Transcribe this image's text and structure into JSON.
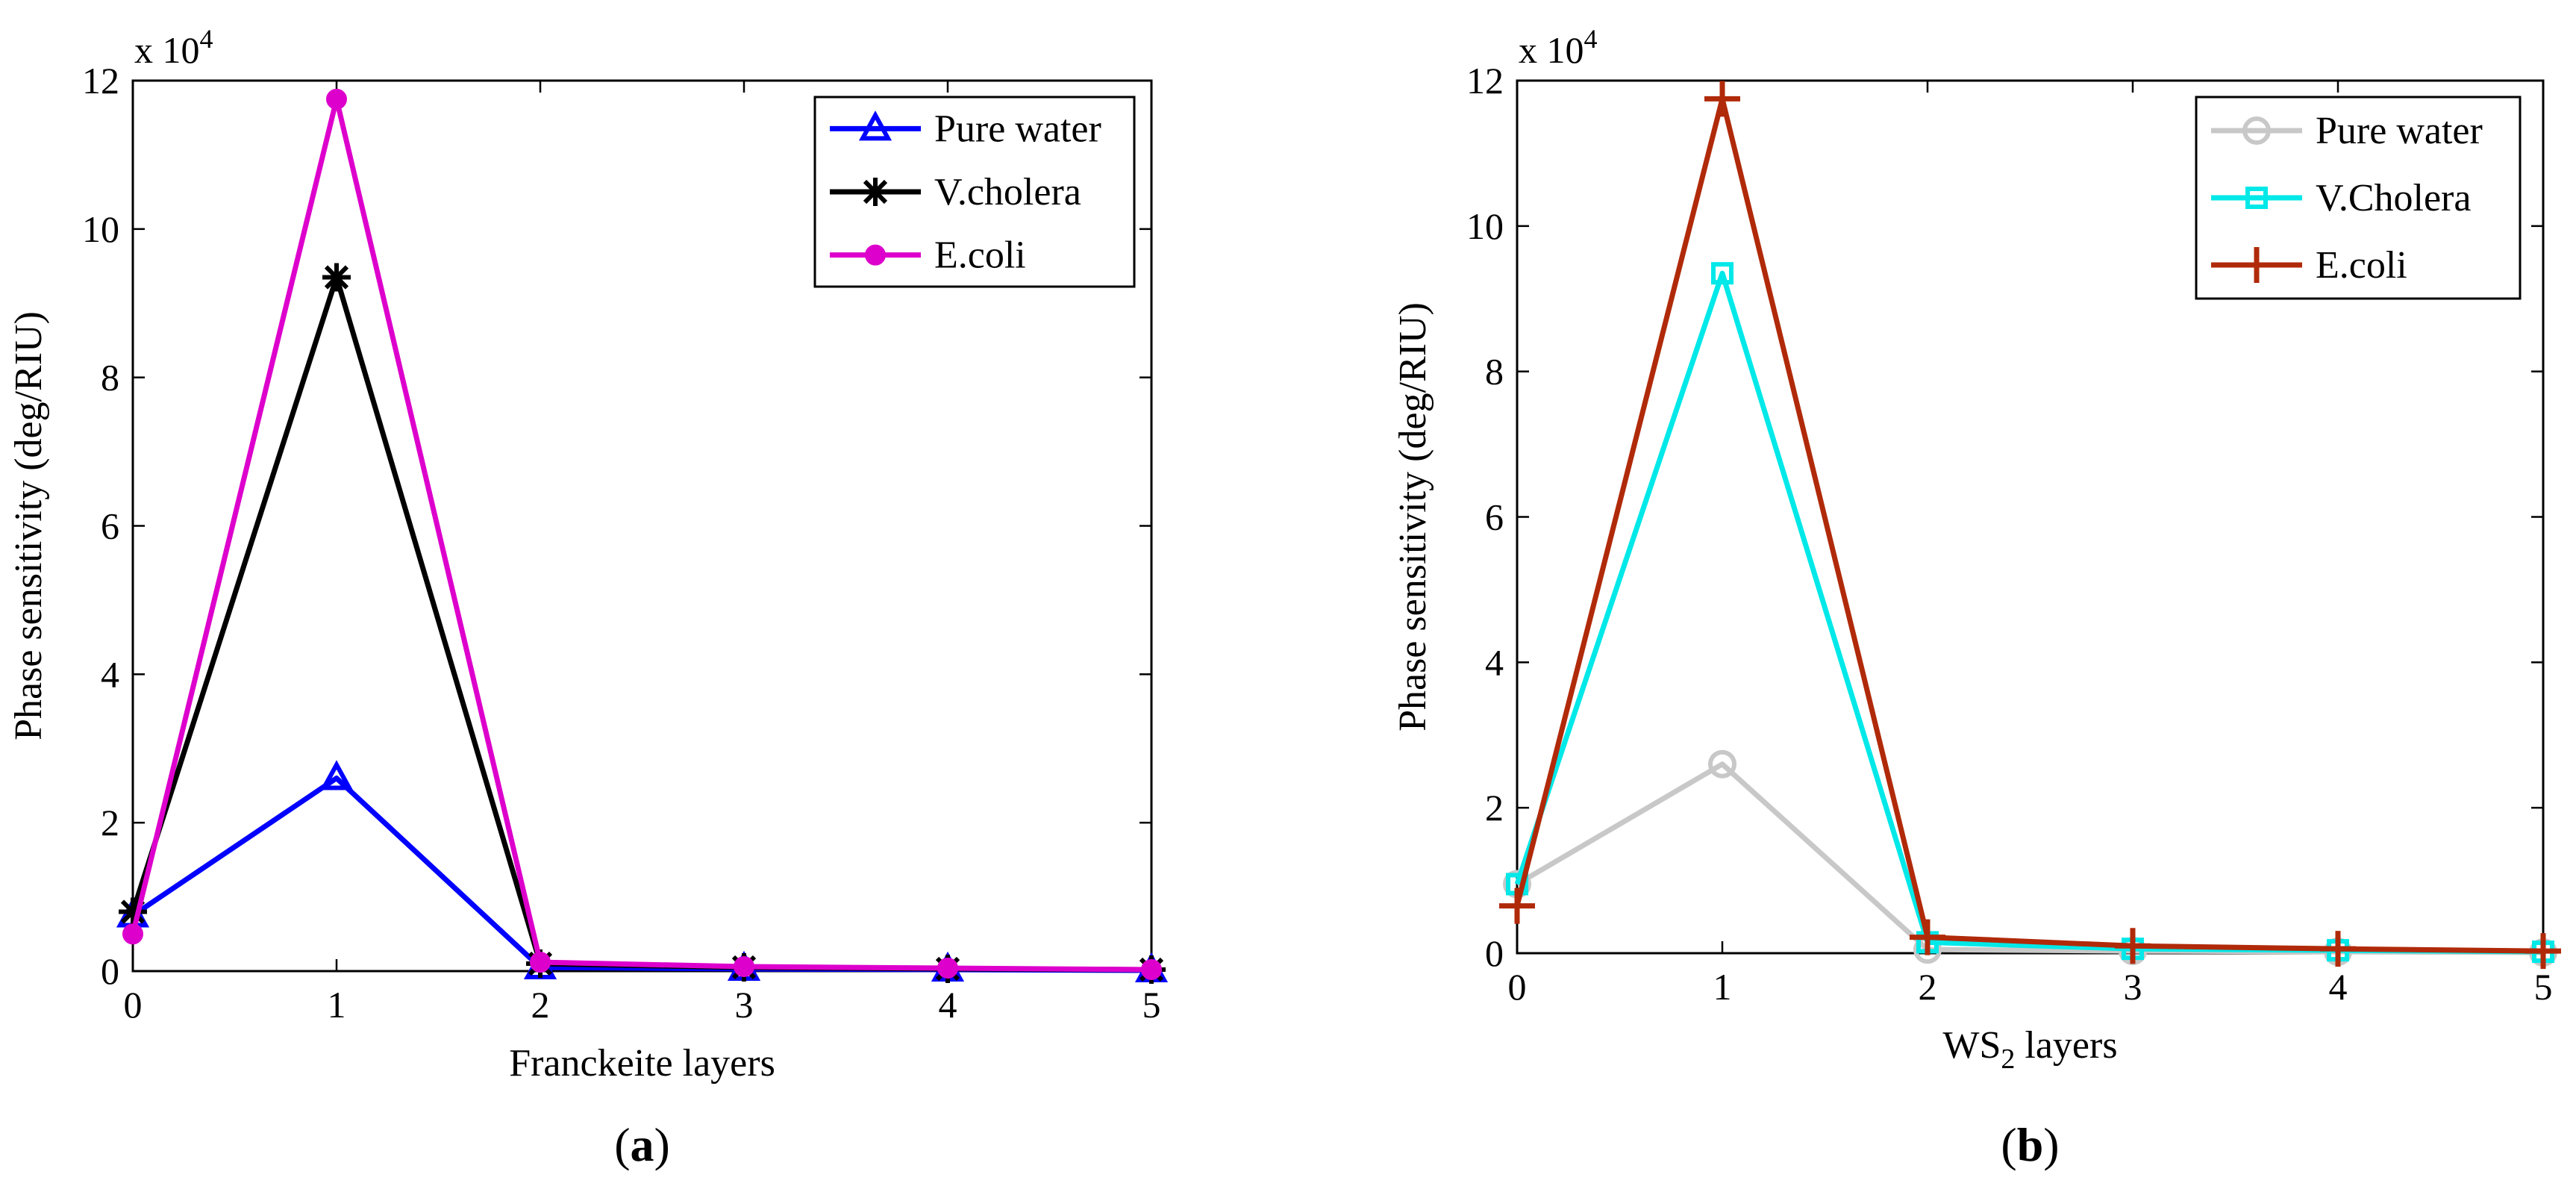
{
  "chart_data": [
    {
      "type": "line",
      "panel_label": "a",
      "title": "",
      "xlabel": "Franckeite layers",
      "xlabel_sub": "",
      "xlabel_tail": "",
      "ylabel": "Phase sensitivity (deg/RIU)",
      "y_exponent_base": "x 10",
      "y_exponent_power": "4",
      "x": [
        0,
        1,
        2,
        3,
        4,
        5
      ],
      "xlim": [
        0,
        5
      ],
      "ylim": [
        0,
        12
      ],
      "x_ticks": [
        "0",
        "1",
        "2",
        "3",
        "4",
        "5"
      ],
      "y_ticks": [
        "0",
        "2",
        "4",
        "6",
        "8",
        "10",
        "12"
      ],
      "y_tick_values": [
        0,
        2,
        4,
        6,
        8,
        10,
        12
      ],
      "legend_position": "top-right",
      "grid": false,
      "series": [
        {
          "name": "Pure water",
          "color": "#0000ff",
          "marker": "triangle",
          "values": [
            0.75,
            2.6,
            0.05,
            0.03,
            0.02,
            0.01
          ]
        },
        {
          "name": "V.cholera",
          "color": "#000000",
          "marker": "star",
          "values": [
            0.8,
            9.35,
            0.1,
            0.05,
            0.03,
            0.02
          ]
        },
        {
          "name": "E.coli",
          "color": "#dd00cc",
          "marker": "dot",
          "values": [
            0.5,
            11.75,
            0.12,
            0.06,
            0.04,
            0.02
          ]
        }
      ]
    },
    {
      "type": "line",
      "panel_label": "b",
      "title": "",
      "xlabel": "WS",
      "xlabel_sub": "2",
      "xlabel_tail": " layers",
      "ylabel": "Phase sensitivity (deg/RIU)",
      "y_exponent_base": "x 10",
      "y_exponent_power": "4",
      "x": [
        0,
        1,
        2,
        3,
        4,
        5
      ],
      "xlim": [
        0,
        5
      ],
      "ylim": [
        0,
        12
      ],
      "x_ticks": [
        "0",
        "1",
        "2",
        "3",
        "4",
        "5"
      ],
      "y_ticks": [
        "0",
        "2",
        "4",
        "6",
        "8",
        "10",
        "12"
      ],
      "y_tick_values": [
        0,
        2,
        4,
        6,
        8,
        10,
        12
      ],
      "legend_position": "top-right",
      "grid": false,
      "series": [
        {
          "name": "Pure water",
          "color": "#c8c8c8",
          "marker": "circle",
          "values": [
            0.95,
            2.6,
            0.05,
            0.03,
            0.02,
            0.01
          ]
        },
        {
          "name": "V.Cholera",
          "color": "#00e8e8",
          "marker": "square",
          "values": [
            0.95,
            9.35,
            0.15,
            0.06,
            0.04,
            0.02
          ]
        },
        {
          "name": "E.coli",
          "color": "#b02a0a",
          "marker": "plus",
          "values": [
            0.65,
            11.75,
            0.22,
            0.1,
            0.06,
            0.03
          ]
        }
      ]
    }
  ]
}
